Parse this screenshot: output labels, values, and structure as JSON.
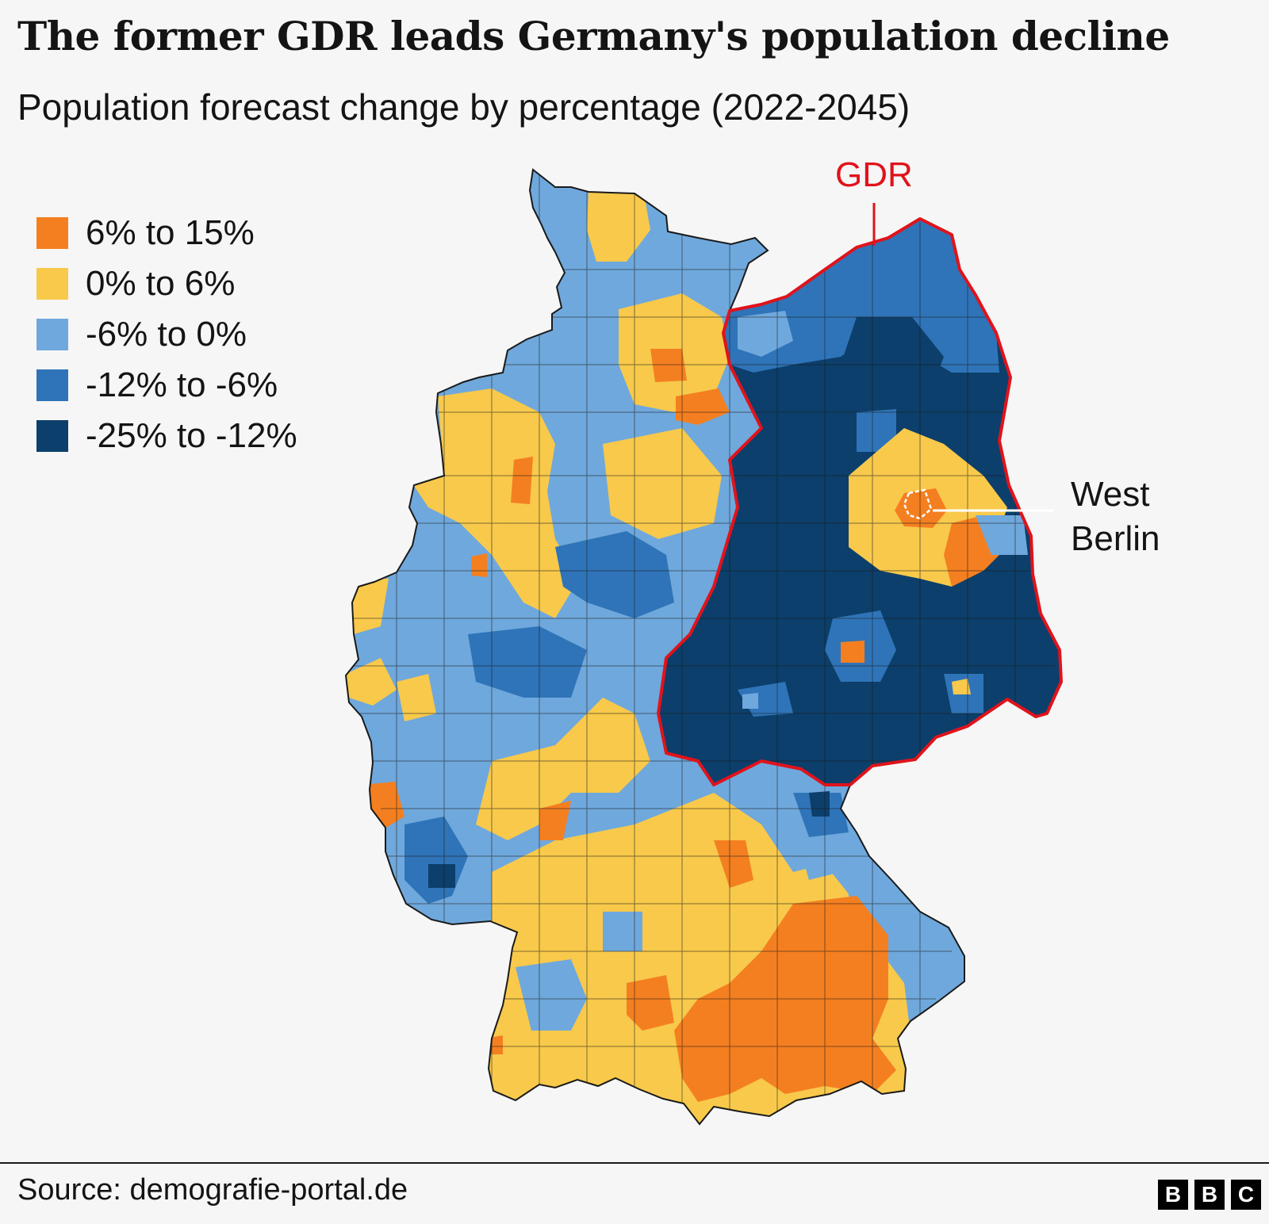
{
  "title": "The former GDR leads Germany's population decline",
  "subtitle": "Population forecast change by percentage (2022-2045)",
  "legend": [
    {
      "label": "6% to 15%",
      "color": "#f47f20"
    },
    {
      "label": "0% to 6%",
      "color": "#f8c94b"
    },
    {
      "label": "-6% to 0%",
      "color": "#6fa8dc"
    },
    {
      "label": "-12% to -6%",
      "color": "#2f74b8"
    },
    {
      "label": "-25% to -12%",
      "color": "#0c3f6b"
    }
  ],
  "annotations": {
    "gdr": "GDR",
    "gdr_outline_color": "#e0131b",
    "west_berlin_line1": "West",
    "west_berlin_line2": "Berlin"
  },
  "source": "Source: demografie-portal.de",
  "logo": [
    "B",
    "B",
    "C"
  ]
}
